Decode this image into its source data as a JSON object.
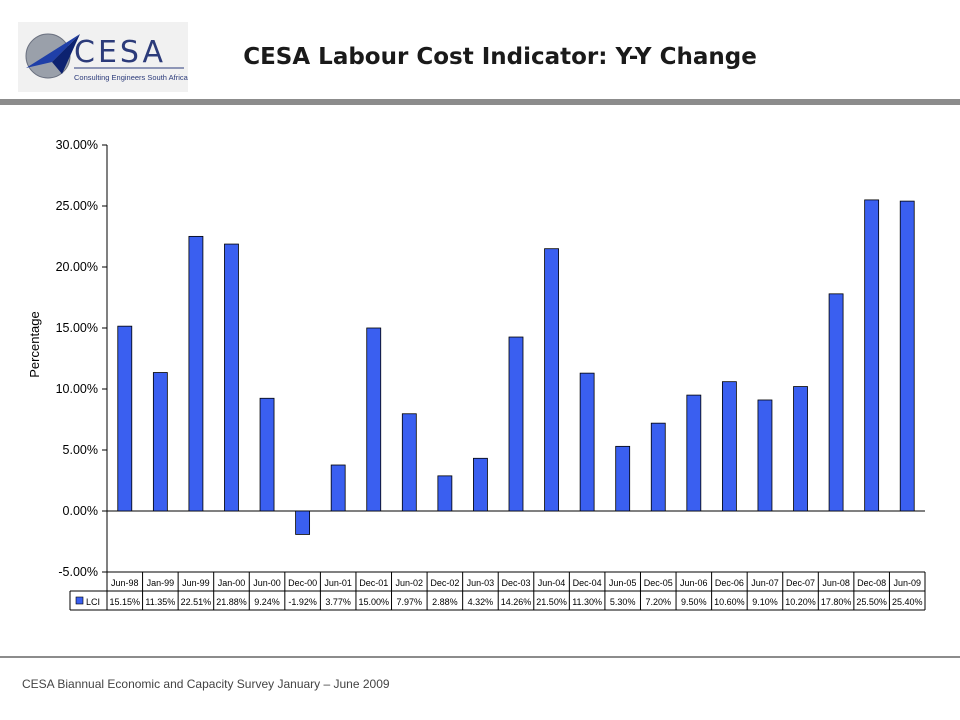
{
  "header": {
    "title": "CESA Labour Cost Indicator: Y-Y Change",
    "logo_text": "CESA",
    "logo_subtitle": "Consulting Engineers South Africa"
  },
  "footer": {
    "text": "CESA Biannual Economic and Capacity Survey January – June 2009"
  },
  "colors": {
    "bar": "#3a5ff0",
    "bar_border": "#000000",
    "rule": "#8c8c8c"
  },
  "chart_data": {
    "type": "bar",
    "title": "",
    "ylabel": "Percentage",
    "xlabel": "",
    "ylim": [
      -5,
      30
    ],
    "yticks": [
      -5,
      0,
      5,
      10,
      15,
      20,
      25,
      30
    ],
    "ytick_labels": [
      "-5.00%",
      "0.00%",
      "5.00%",
      "10.00%",
      "15.00%",
      "20.00%",
      "25.00%",
      "30.00%"
    ],
    "grid": false,
    "legend": "data-table",
    "categories": [
      "Jun-98",
      "Jan-99",
      "Jun-99",
      "Jan-00",
      "Jun-00",
      "Dec-00",
      "Jun-01",
      "Dec-01",
      "Jun-02",
      "Dec-02",
      "Jun-03",
      "Dec-03",
      "Jun-04",
      "Dec-04",
      "Jun-05",
      "Dec-05",
      "Jun-06",
      "Dec-06",
      "Jun-07",
      "Dec-07",
      "Jun-08",
      "Dec-08",
      "Jun-09"
    ],
    "series": [
      {
        "name": "LCI",
        "values": [
          15.15,
          11.35,
          22.51,
          21.88,
          9.24,
          -1.92,
          3.77,
          15.0,
          7.97,
          2.88,
          4.32,
          14.26,
          21.5,
          11.3,
          5.3,
          7.2,
          9.5,
          10.6,
          9.1,
          10.2,
          17.8,
          25.5,
          25.4
        ],
        "labels": [
          "15.15%",
          "11.35%",
          "22.51%",
          "21.88%",
          "9.24%",
          "-1.92%",
          "3.77%",
          "15.00%",
          "7.97%",
          "2.88%",
          "4.32%",
          "14.26%",
          "21.50%",
          "11.30%",
          "5.30%",
          "7.20%",
          "9.50%",
          "10.60%",
          "9.10%",
          "10.20%",
          "17.80%",
          "25.50%",
          "25.40%"
        ]
      }
    ]
  }
}
